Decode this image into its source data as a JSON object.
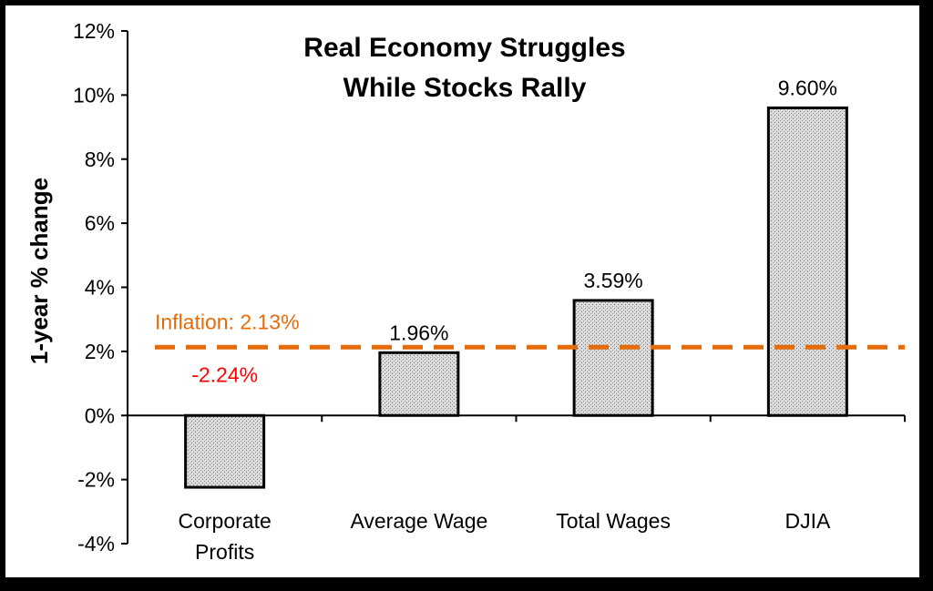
{
  "chart_data": {
    "type": "bar",
    "title": [
      "Real Economy Struggles",
      "While Stocks Rally"
    ],
    "ylabel": "1-year % change",
    "xlabel": "",
    "ylim": [
      -4,
      12
    ],
    "yticks": [
      12,
      10,
      8,
      6,
      4,
      2,
      0,
      -2,
      -4
    ],
    "ytick_labels": [
      "12%",
      "10%",
      "8%",
      "6%",
      "4%",
      "2%",
      "0%",
      "-2%",
      "-4%"
    ],
    "grid": false,
    "categories": [
      [
        "Corporate",
        "Profits"
      ],
      [
        "Average Wage"
      ],
      [
        "Total Wages"
      ],
      [
        "DJIA"
      ]
    ],
    "values": [
      -2.24,
      1.96,
      3.59,
      9.6
    ],
    "value_labels": [
      "-2.24%",
      "1.96%",
      "3.59%",
      "9.60%"
    ],
    "value_label_colors": [
      "#ff0000",
      "#000000",
      "#000000",
      "#000000"
    ],
    "reference_line": {
      "label": "Inflation: 2.13%",
      "value": 2.13,
      "color": "#e46c0a",
      "style": "dashed"
    },
    "bar_fill": "#dcdcdc",
    "bar_stroke": "#000000"
  }
}
